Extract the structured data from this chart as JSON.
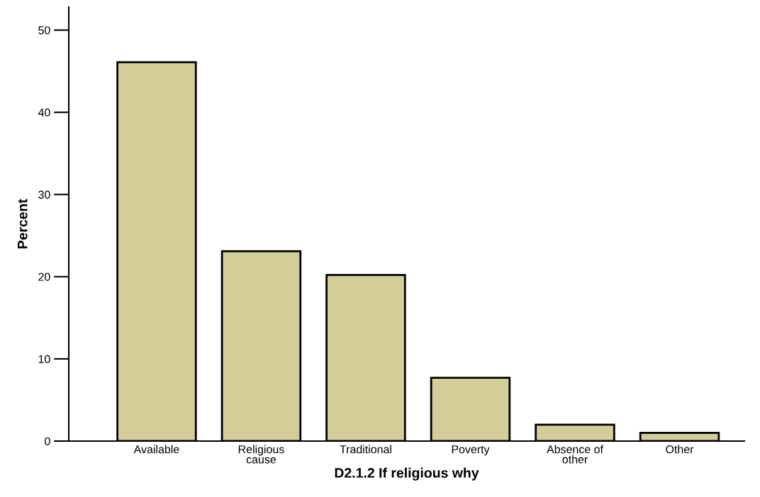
{
  "chart_data": {
    "type": "bar",
    "categories": [
      "Available",
      "Religious\ncause",
      "Traditional",
      "Poverty",
      "Absence of\nother",
      "Other"
    ],
    "values": [
      46.1,
      23.1,
      20.2,
      7.7,
      2.0,
      1.0
    ],
    "color": "#d3cd98",
    "xlabel": "D2.1.2 If religious why",
    "ylabel": "Percent",
    "ylim": [
      0,
      52.8
    ],
    "yticks": [
      0,
      10,
      20,
      30,
      40,
      50
    ],
    "grid": false,
    "legend": false
  }
}
